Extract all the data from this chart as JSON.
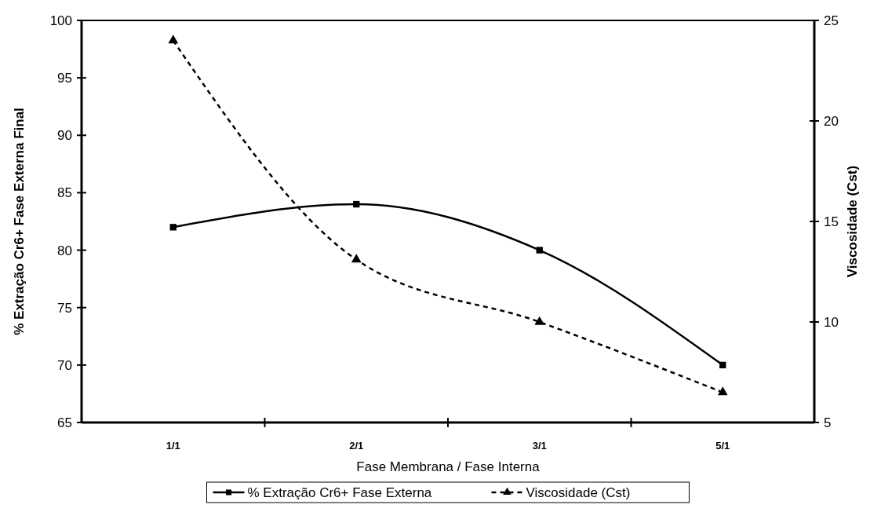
{
  "chart_data": {
    "type": "line",
    "xlabel": "Fase Membrana / Fase Interna",
    "ylabel": "% Extração Cr6+  Fase Externa Final",
    "y2label": "Viscosidade (Cst)",
    "categories": [
      "1/1",
      "2/1",
      "3/1",
      "5/1"
    ],
    "series": [
      {
        "name": "% Extração Cr6+ Fase Externa",
        "color": "#000000",
        "values": [
          82,
          84,
          80,
          70
        ],
        "marker": "square",
        "line_style": "solid"
      },
      {
        "name": "Viscosidade (Cst)",
        "color": "#000000",
        "values": [
          24,
          13.1,
          10,
          6.5
        ],
        "axis": "y2",
        "marker": "triangle",
        "line_style": "dashed"
      }
    ],
    "ylim": [
      65,
      100
    ],
    "yticks": [
      65,
      70,
      75,
      80,
      85,
      90,
      95,
      100
    ],
    "y2lim": [
      5,
      25
    ],
    "y2ticks": [
      5,
      10,
      15,
      20,
      25
    ],
    "grid": false,
    "legend": "bottom"
  }
}
